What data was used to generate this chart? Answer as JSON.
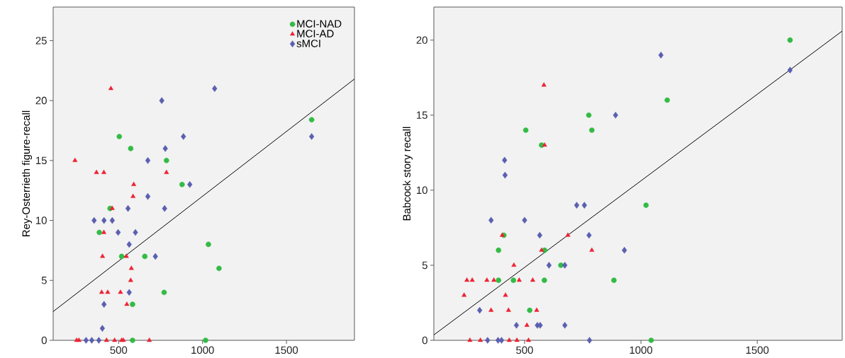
{
  "chart_data": [
    {
      "type": "scatter",
      "ylabel": "Rey-Osterrieth figure-recall",
      "xlim": [
        110,
        1905
      ],
      "ylim": [
        0,
        27.8
      ],
      "xticks": [
        500,
        1000,
        1500
      ],
      "yticks": [
        0,
        5,
        10,
        15,
        20,
        25
      ],
      "legend": "top right",
      "grid": false,
      "series": [
        {
          "name": "MCI-NAD",
          "color": "#33bb44",
          "marker": "circle",
          "x": [
            504,
            572,
            785,
            878,
            449,
            385,
            518,
            656,
            771,
            583,
            583,
            1018,
            1035,
            1098,
            1650
          ],
          "values": [
            17,
            16,
            15,
            13,
            11,
            9,
            7,
            7,
            4,
            3,
            0,
            0,
            8,
            6,
            18.4
          ]
        },
        {
          "name": "MCI-AD",
          "color": "#ee2233",
          "marker": "triangle",
          "x": [
            240,
            368,
            412,
            454,
            590,
            586,
            462,
            412,
            404,
            546,
            576,
            572,
            399,
            435,
            511,
            549,
            785,
            250,
            264,
            428,
            476,
            518,
            528,
            683
          ],
          "values": [
            15,
            14,
            14,
            21,
            13,
            12,
            11,
            9,
            7,
            7,
            6,
            5,
            4,
            4,
            4,
            3,
            14,
            0,
            0,
            0,
            0,
            0,
            0,
            0
          ]
        },
        {
          "name": "sMCI",
          "color": "#5a5fb0",
          "marker": "diamond",
          "x": [
            757,
            886,
            778,
            674,
            924,
            674,
            556,
            774,
            354,
            413,
            462,
            497,
            600,
            563,
            719,
            563,
            413,
            403,
            306,
            340,
            382,
            1072,
            1650
          ],
          "values": [
            20,
            17,
            16,
            15,
            13,
            12,
            11,
            11,
            10,
            10,
            10,
            9,
            9,
            8,
            7,
            4,
            3,
            1,
            0,
            0,
            0,
            21,
            17
          ]
        },
        {
          "type": "line",
          "color": "#000000",
          "marker": "none",
          "x": [
            110,
            1905
          ],
          "values": [
            2.4,
            21.8
          ]
        }
      ]
    },
    {
      "type": "scatter",
      "ylabel": "Babcock story recall",
      "xlim": [
        110,
        1865
      ],
      "ylim": [
        0,
        22.2
      ],
      "xticks": [
        500,
        1000,
        1500
      ],
      "yticks": [
        0,
        5,
        10,
        15,
        20
      ],
      "grid": false,
      "series": [
        {
          "color": "#33bb44",
          "marker": "circle",
          "x": [
            776,
            789,
            505,
            573,
            411,
            388,
            586,
            656,
            388,
            452,
            585,
            522,
            1641,
            1113,
            1022,
            884,
            1044
          ],
          "values": [
            15,
            14,
            14,
            13,
            7,
            6,
            6,
            5,
            4,
            4,
            4,
            2,
            20,
            16,
            9,
            4,
            0
          ]
        },
        {
          "color": "#ee2233",
          "marker": "triangle",
          "x": [
            583,
            586,
            404,
            686,
            573,
            789,
            454,
            252,
            275,
            338,
            368,
            477,
            535,
            240,
            418,
            356,
            431,
            552,
            510,
            265,
            310,
            434,
            467,
            517
          ],
          "values": [
            17,
            13,
            7,
            7,
            6,
            6,
            5,
            4,
            4,
            4,
            4,
            4,
            4,
            3,
            3,
            2,
            2,
            2,
            1,
            0,
            0,
            0,
            0,
            0
          ]
        },
        {
          "color": "#5a5fb0",
          "marker": "diamond",
          "x": [
            414,
            416,
            724,
            757,
            356,
            500,
            565,
            777,
            605,
            673,
            307,
            465,
            555,
            567,
            673,
            341,
            386,
            401,
            779,
            1086,
            1641,
            891,
            929
          ],
          "values": [
            12,
            11,
            9,
            9,
            8,
            8,
            7,
            7,
            5,
            5,
            2,
            1,
            1,
            1,
            1,
            0,
            0,
            0,
            0,
            19,
            18,
            15,
            6
          ]
        },
        {
          "type": "line",
          "color": "#000000",
          "marker": "none",
          "x": [
            110,
            1865
          ],
          "values": [
            0.36,
            20.6
          ]
        }
      ]
    }
  ]
}
